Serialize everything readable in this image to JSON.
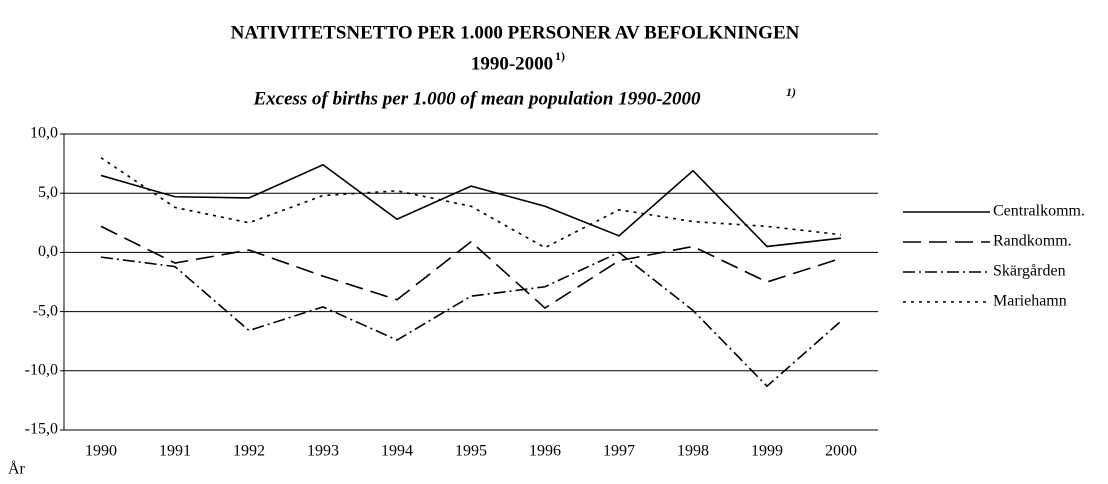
{
  "chart_data": {
    "type": "line",
    "title": [
      "NATIVITETSNETTO PER 1.000 PERSONER AV BEFOLKNINGEN",
      "1990-2000"
    ],
    "title_note": "1)",
    "subtitle": "Excess of births per 1.000 of mean population 1990-2000",
    "subtitle_note": "1)",
    "x_label": "År",
    "categories": [
      "1990",
      "1991",
      "1992",
      "1993",
      "1994",
      "1995",
      "1996",
      "1997",
      "1998",
      "1999",
      "2000"
    ],
    "series": [
      {
        "name": "Centralkomm.",
        "color": "#000000",
        "dash": "none",
        "values": [
          6.5,
          4.7,
          4.6,
          7.4,
          2.8,
          5.6,
          3.9,
          1.4,
          6.9,
          0.5,
          1.2
        ]
      },
      {
        "name": "Randkomm.",
        "color": "#000000",
        "dash": "18,8",
        "values": [
          2.2,
          -0.9,
          0.2,
          -2.0,
          -4.0,
          0.9,
          -4.7,
          -0.7,
          0.5,
          -2.5,
          -0.5
        ]
      },
      {
        "name": "Skärgården",
        "color": "#000000",
        "dash": "12,4,2,4",
        "values": [
          -0.4,
          -1.2,
          -6.6,
          -4.6,
          -7.4,
          -3.7,
          -2.9,
          0.0,
          -4.9,
          -11.3,
          -5.8
        ]
      },
      {
        "name": "Mariehamn",
        "color": "#000000",
        "dash": "3,5",
        "values": [
          8.0,
          3.8,
          2.5,
          4.8,
          5.2,
          3.9,
          0.4,
          3.6,
          2.6,
          2.2,
          1.5
        ]
      }
    ],
    "ylim": [
      -15,
      10
    ],
    "yticks": [
      {
        "value": -15,
        "label": "-15,0"
      },
      {
        "value": -10,
        "label": "-10,0"
      },
      {
        "value": -5,
        "label": "-5,0"
      },
      {
        "value": 0,
        "label": "0,0"
      },
      {
        "value": 5,
        "label": "5,0"
      },
      {
        "value": 10,
        "label": "10,0"
      }
    ],
    "grid": true,
    "legend": "right"
  }
}
